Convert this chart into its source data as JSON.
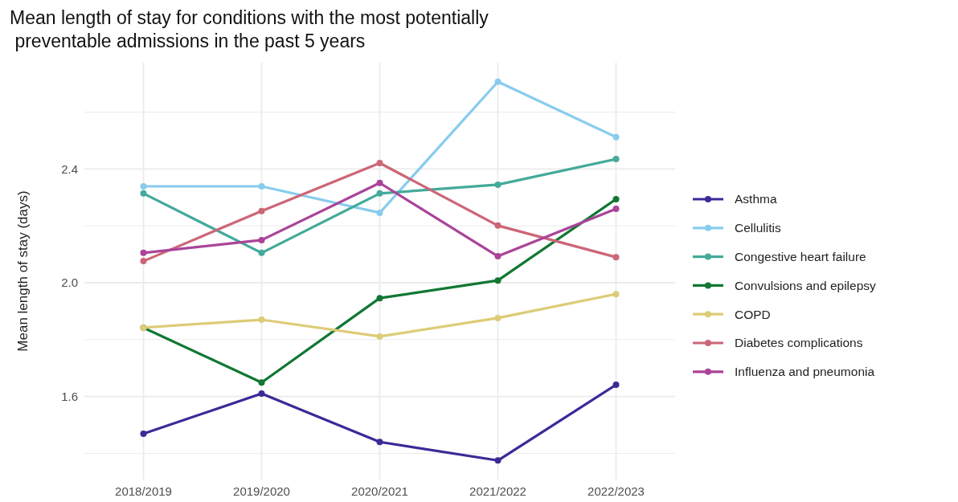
{
  "chart_data": {
    "type": "line",
    "title": "Mean length of stay for conditions with the most potentially\n preventable admissions in the past 5 years",
    "ylabel": "Mean length of stay (days)",
    "categories": [
      "2018/2019",
      "2019/2020",
      "2020/2021",
      "2021/2022",
      "2022/2023"
    ],
    "ylim": [
      1.308,
      2.774
    ],
    "yticks": [
      {
        "value": 1.4,
        "label": null
      },
      {
        "value": 1.6,
        "label": "1.6"
      },
      {
        "value": 1.8,
        "label": null
      },
      {
        "value": 2,
        "label": "2.0"
      },
      {
        "value": 2.2,
        "label": null
      },
      {
        "value": 2.4,
        "label": "2.4"
      },
      {
        "value": 2.6,
        "label": null
      }
    ],
    "grid": true,
    "legend": "right",
    "marker": "circle",
    "line_style": "solid",
    "series": [
      {
        "name": "Asthma",
        "color": "#3b2a98",
        "values": [
          1.469,
          1.61,
          1.44,
          1.375,
          1.641
        ]
      },
      {
        "name": "Cellulitis",
        "color": "#88ccee",
        "values": [
          2.339,
          2.339,
          2.246,
          2.707,
          2.512
        ]
      },
      {
        "name": "Congestive heart failure",
        "color": "#44aa99",
        "values": [
          2.314,
          2.105,
          2.314,
          2.345,
          2.435
        ]
      },
      {
        "name": "Convulsions and epilepsy",
        "color": "#117733",
        "values": [
          1.842,
          1.649,
          1.946,
          2.008,
          2.294
        ]
      },
      {
        "name": "COPD",
        "color": "#ddcc77",
        "values": [
          1.842,
          1.87,
          1.811,
          1.876,
          1.96
        ]
      },
      {
        "name": "Diabetes complications",
        "color": "#cc6677",
        "values": [
          2.076,
          2.252,
          2.421,
          2.201,
          2.09
        ]
      },
      {
        "name": "Influenza and pneumonia",
        "color": "#aa4499",
        "values": [
          2.105,
          2.15,
          2.351,
          2.093,
          2.26
        ]
      }
    ]
  }
}
